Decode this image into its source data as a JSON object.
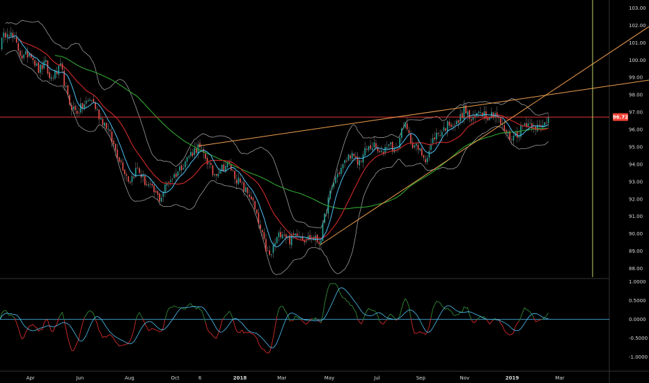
{
  "chart_data": {
    "type": "candlestick",
    "colors": {
      "background": "#000000",
      "up": "#26a69a",
      "down": "#ef5350",
      "sma_fast": "#4fc3f7",
      "sma_mid": "#c62828",
      "sma_slow": "#2e9b2e",
      "bollinger": "#9e9e9e",
      "trendline": "#f0a050",
      "hline": "#e53935",
      "cursor": "#c5d36a",
      "osc_pos": "#2e7d32",
      "osc_neg": "#c62828",
      "osc_signal": "#4fc3f7",
      "osc_zero": "#4fc3f7",
      "last_badge": "#f44336"
    },
    "x_ticks": [
      {
        "label": "Apr",
        "t": 0.08,
        "bold": false
      },
      {
        "label": "Jun",
        "t": 0.21,
        "bold": false
      },
      {
        "label": "Aug",
        "t": 0.34,
        "bold": false
      },
      {
        "label": "Oct",
        "t": 0.46,
        "bold": false
      },
      {
        "label": "6",
        "t": 0.525,
        "bold": false
      },
      {
        "label": "2018",
        "t": 0.63,
        "bold": true
      },
      {
        "label": "Mar",
        "t": 0.74,
        "bold": false
      },
      {
        "label": "May",
        "t": 0.865,
        "bold": false
      },
      {
        "label": "Jul",
        "t": 0.99,
        "bold": false
      },
      {
        "label": "Sep",
        "t": 1.105,
        "bold": false
      },
      {
        "label": "Nov",
        "t": 1.22,
        "bold": false
      },
      {
        "label": "2019",
        "t": 1.345,
        "bold": true
      },
      {
        "label": "Mar",
        "t": 1.47,
        "bold": false
      }
    ],
    "price_axis": {
      "min": 87.5,
      "max": 103.3,
      "ticks": [
        "103.00",
        "102.00",
        "101.00",
        "100.00",
        "99.00",
        "98.00",
        "97.00",
        "96.00",
        "95.00",
        "94.00",
        "93.00",
        "92.00",
        "91.00",
        "90.00",
        "89.00",
        "88.00"
      ]
    },
    "last_price": "96.72",
    "osc_axis": {
      "min": -1.25,
      "max": 1.05,
      "ticks": [
        "1.0000",
        "0.5000",
        "0.0000",
        "-0.5000",
        "-1.0000"
      ]
    },
    "close_anchors": [
      [
        0.0,
        100.9
      ],
      [
        0.02,
        101.8
      ],
      [
        0.04,
        101.0
      ],
      [
        0.06,
        100.1
      ],
      [
        0.08,
        100.5
      ],
      [
        0.1,
        99.4
      ],
      [
        0.12,
        99.8
      ],
      [
        0.13,
        98.9
      ],
      [
        0.15,
        99.3
      ],
      [
        0.16,
        99.6
      ],
      [
        0.18,
        97.6
      ],
      [
        0.2,
        97.0
      ],
      [
        0.22,
        97.4
      ],
      [
        0.24,
        97.8
      ],
      [
        0.26,
        96.8
      ],
      [
        0.28,
        96.2
      ],
      [
        0.3,
        95.0
      ],
      [
        0.32,
        94.0
      ],
      [
        0.34,
        93.0
      ],
      [
        0.36,
        93.8
      ],
      [
        0.38,
        93.0
      ],
      [
        0.4,
        92.5
      ],
      [
        0.42,
        92.0
      ],
      [
        0.44,
        93.0
      ],
      [
        0.46,
        93.4
      ],
      [
        0.48,
        94.0
      ],
      [
        0.5,
        94.6
      ],
      [
        0.52,
        95.0
      ],
      [
        0.54,
        94.4
      ],
      [
        0.56,
        93.4
      ],
      [
        0.58,
        93.8
      ],
      [
        0.6,
        94.0
      ],
      [
        0.62,
        93.2
      ],
      [
        0.64,
        92.6
      ],
      [
        0.66,
        92.1
      ],
      [
        0.68,
        90.5
      ],
      [
        0.7,
        89.0
      ],
      [
        0.71,
        88.6
      ],
      [
        0.72,
        89.4
      ],
      [
        0.74,
        90.2
      ],
      [
        0.76,
        89.6
      ],
      [
        0.78,
        90.1
      ],
      [
        0.8,
        89.7
      ],
      [
        0.82,
        89.8
      ],
      [
        0.84,
        89.5
      ],
      [
        0.86,
        91.8
      ],
      [
        0.88,
        93.2
      ],
      [
        0.9,
        93.9
      ],
      [
        0.92,
        94.6
      ],
      [
        0.94,
        94.0
      ],
      [
        0.96,
        94.8
      ],
      [
        0.98,
        95.1
      ],
      [
        1.0,
        94.5
      ],
      [
        1.02,
        95.3
      ],
      [
        1.04,
        94.7
      ],
      [
        1.06,
        96.4
      ],
      [
        1.08,
        95.3
      ],
      [
        1.1,
        94.8
      ],
      [
        1.12,
        94.3
      ],
      [
        1.14,
        95.6
      ],
      [
        1.16,
        95.9
      ],
      [
        1.18,
        96.4
      ],
      [
        1.2,
        96.3
      ],
      [
        1.22,
        97.2
      ],
      [
        1.24,
        96.4
      ],
      [
        1.26,
        97.2
      ],
      [
        1.28,
        96.8
      ],
      [
        1.3,
        97.0
      ],
      [
        1.32,
        96.1
      ],
      [
        1.34,
        95.5
      ],
      [
        1.36,
        95.8
      ],
      [
        1.38,
        96.4
      ],
      [
        1.4,
        96.3
      ],
      [
        1.42,
        96.0
      ],
      [
        1.44,
        96.72
      ]
    ]
  }
}
